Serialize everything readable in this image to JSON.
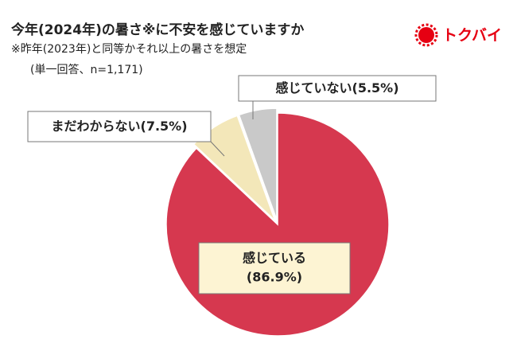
{
  "chart_data": {
    "type": "pie",
    "title": "今年(2024年)の暑さ※に不安を感じていますか",
    "subtitle": "※昨年(2023年)と同等かそれ以上の暑さを想定",
    "note": "(単一回答、n=1,171)",
    "logo": "トクバイ",
    "categories": [
      "感じている",
      "まだわからない",
      "感じていない"
    ],
    "values": [
      86.9,
      7.5,
      5.5
    ],
    "value_labels": [
      "(86.9%)",
      "(7.5%)",
      "(5.5%)"
    ],
    "colors": [
      "#d6384f",
      "#f3e7b9",
      "#c9c9c9"
    ]
  }
}
